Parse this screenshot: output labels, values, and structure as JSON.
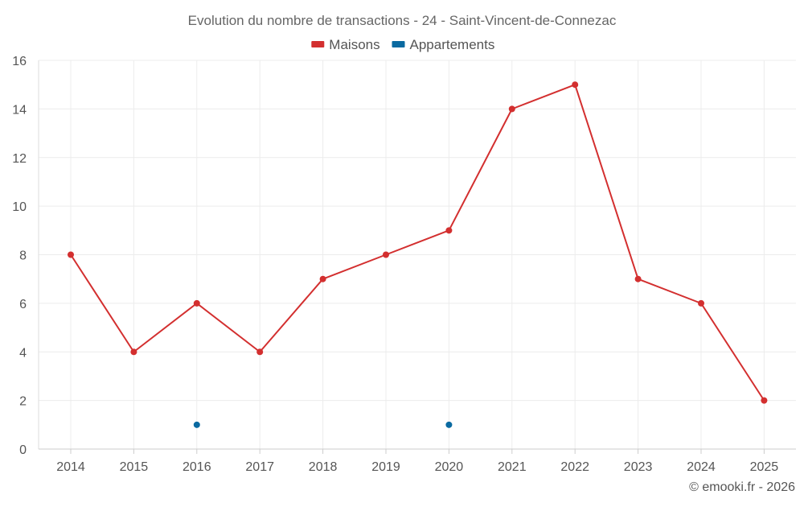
{
  "chart_data": {
    "type": "line",
    "title": "Evolution du nombre de transactions - 24 - Saint-Vincent-de-Connezac",
    "xlabel": "",
    "ylabel": "",
    "categories": [
      "2014",
      "2015",
      "2016",
      "2017",
      "2018",
      "2019",
      "2020",
      "2021",
      "2022",
      "2023",
      "2024",
      "2025"
    ],
    "ylim": [
      0,
      16
    ],
    "yticks": [
      0,
      2,
      4,
      6,
      8,
      10,
      12,
      14,
      16
    ],
    "grid": true,
    "legend_position": "top-center",
    "series": [
      {
        "name": "Maisons",
        "color": "#d32f2f",
        "values": [
          8,
          4,
          6,
          4,
          7,
          8,
          9,
          14,
          15,
          7,
          6,
          2
        ]
      },
      {
        "name": "Appartements",
        "color": "#0a6aa1",
        "values": [
          null,
          null,
          1,
          null,
          null,
          null,
          1,
          null,
          null,
          null,
          null,
          null
        ]
      }
    ],
    "credit": "© emooki.fr - 2026"
  }
}
